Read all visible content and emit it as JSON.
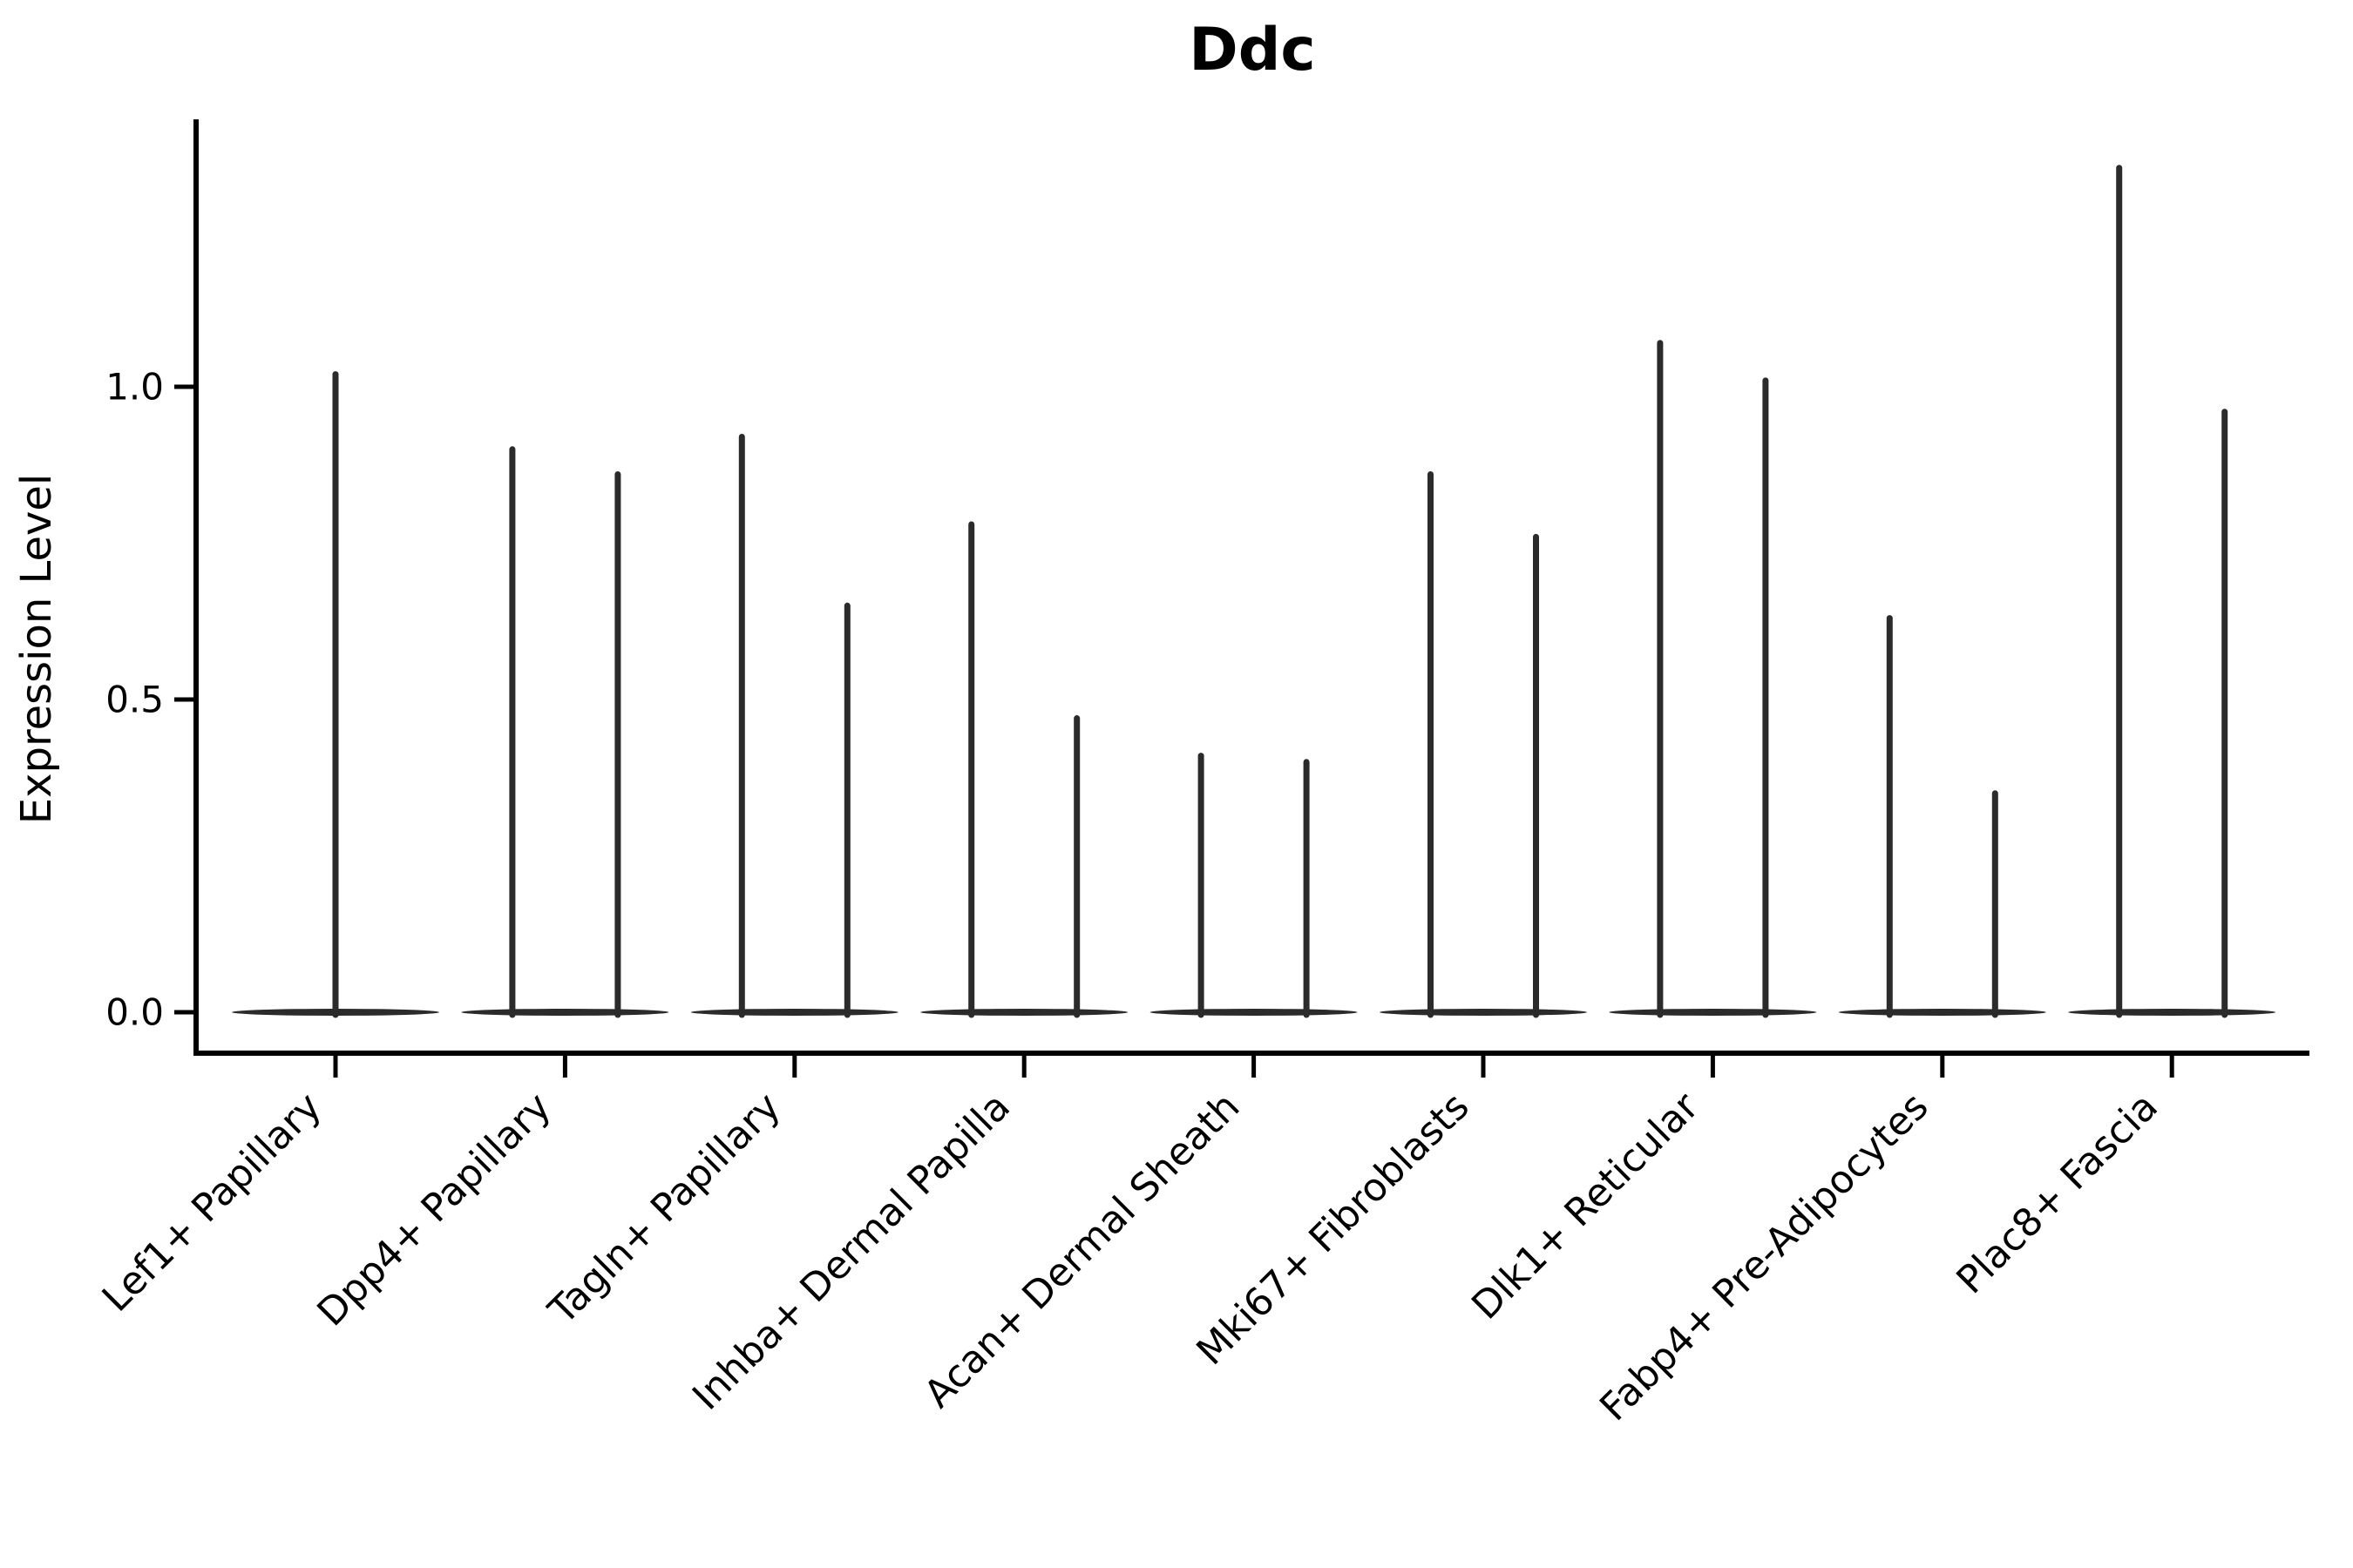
{
  "chart_data": {
    "type": "violin",
    "title": "Ddc",
    "ylabel": "Expression Level",
    "xlabel": "",
    "yticks": [
      "0.0",
      "0.5",
      "1.0"
    ],
    "ytick_values": [
      0.0,
      0.5,
      1.0
    ],
    "ylim": [
      -0.065,
      1.43
    ],
    "grid": false,
    "legend_position": "none",
    "baseline_value": 0.0,
    "categories": [
      "Lef1+ Papillary",
      "Dpp4+ Papillary",
      "Tagln+ Papillary",
      "Inhba+ Dermal Papilla",
      "Acan+ Dermal Sheath",
      "Mki67+ Fibroblasts",
      "Dlk1+ Reticular",
      "Fabp4+ Pre-Adipocytes",
      "Plac8+ Fascia"
    ],
    "violins": [
      {
        "category": "Lef1+ Papillary",
        "max_expression": [
          1.02
        ]
      },
      {
        "category": "Dpp4+ Papillary",
        "max_expression": [
          0.9,
          0.86
        ]
      },
      {
        "category": "Tagln+ Papillary",
        "max_expression": [
          0.92,
          0.65
        ]
      },
      {
        "category": "Inhba+ Dermal Papilla",
        "max_expression": [
          0.78,
          0.47
        ]
      },
      {
        "category": "Acan+ Dermal Sheath",
        "max_expression": [
          0.41,
          0.4
        ]
      },
      {
        "category": "Mki67+ Fibroblasts",
        "max_expression": [
          0.86,
          0.76
        ]
      },
      {
        "category": "Dlk1+ Reticular",
        "max_expression": [
          1.07,
          1.01
        ]
      },
      {
        "category": "Fabp4+ Pre-Adipocytes",
        "max_expression": [
          0.63,
          0.35
        ]
      },
      {
        "category": "Plac8+ Fascia",
        "max_expression": [
          1.35,
          0.96
        ]
      }
    ],
    "colors": {
      "violin": "#2b2b2b",
      "axis": "#000000",
      "text": "#000000",
      "background": "#ffffff"
    }
  }
}
